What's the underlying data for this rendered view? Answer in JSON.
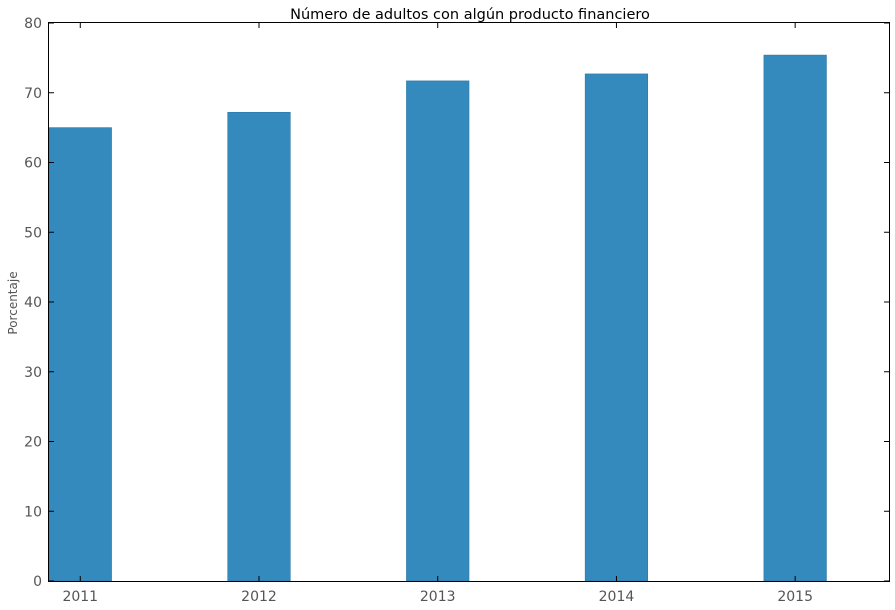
{
  "chart_data": {
    "type": "bar",
    "title": "Número de adultos con algún producto financiero",
    "xlabel": "",
    "ylabel": "Porcentaje",
    "categories": [
      "2011",
      "2012",
      "2013",
      "2014",
      "2015"
    ],
    "values": [
      65.0,
      67.2,
      71.7,
      72.7,
      75.4
    ],
    "ylim": [
      0,
      80
    ],
    "yticks": [
      0,
      10,
      20,
      30,
      40,
      50,
      60,
      70,
      80
    ],
    "grid": false,
    "legend": "none",
    "colors": {
      "bar": "#348abd",
      "axis": "#000000",
      "tick_label": "#555555"
    }
  }
}
